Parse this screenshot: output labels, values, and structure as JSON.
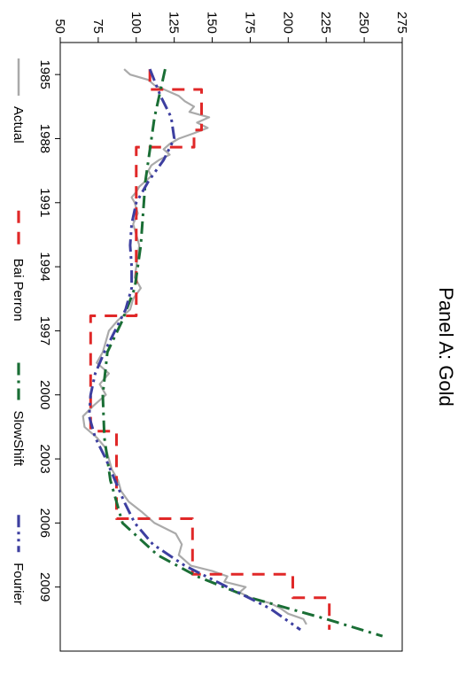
{
  "chart_data": {
    "type": "line",
    "title": "Panel A: Gold",
    "xlabel": "",
    "ylabel": "",
    "x_ticks": [
      "1985",
      "1988",
      "1991",
      "1994",
      "1997",
      "2000",
      "2003",
      "2006",
      "2009"
    ],
    "x_tick_values": [
      1985,
      1988,
      1991,
      1994,
      1997,
      2000,
      2003,
      2006,
      2009
    ],
    "xlim": [
      1983.5,
      2012.0
    ],
    "y_ticks": [
      "50",
      "75",
      "100",
      "125",
      "150",
      "175",
      "200",
      "225",
      "250",
      "275"
    ],
    "ylim": [
      50,
      275
    ],
    "legend_placement": "bottom",
    "series": [
      {
        "name": "Actual",
        "color": "#aaaaaa",
        "dash": "solid",
        "x": [
          1984.75,
          1985.0,
          1985.25,
          1985.5,
          1985.75,
          1986.0,
          1986.25,
          1986.5,
          1986.75,
          1987.0,
          1987.25,
          1987.5,
          1987.75,
          1988.0,
          1988.25,
          1988.5,
          1988.75,
          1989.0,
          1989.25,
          1989.5,
          1989.75,
          1990.0,
          1990.25,
          1990.5,
          1990.75,
          1991.0,
          1991.5,
          1992.0,
          1992.5,
          1993.0,
          1993.5,
          1994.0,
          1994.5,
          1995.0,
          1995.5,
          1996.0,
          1996.5,
          1997.0,
          1997.5,
          1998.0,
          1998.5,
          1999.0,
          1999.5,
          2000.0,
          2000.5,
          2001.0,
          2001.5,
          2002.0,
          2002.5,
          2003.0,
          2003.5,
          2004.0,
          2004.5,
          2005.0,
          2005.5,
          2006.0,
          2006.5,
          2007.0,
          2007.5,
          2008.0,
          2008.25,
          2008.5,
          2008.75,
          2009.0,
          2009.25,
          2009.5,
          2009.75,
          2010.0,
          2010.25,
          2010.5,
          2010.75
        ],
        "y": [
          92,
          96,
          108,
          112,
          120,
          128,
          132,
          138,
          135,
          148,
          140,
          147,
          138,
          128,
          122,
          118,
          122,
          115,
          110,
          108,
          110,
          106,
          102,
          100,
          97,
          99,
          101,
          98,
          100,
          102,
          101,
          100,
          99,
          103,
          98,
          96,
          88,
          82,
          80,
          78,
          74,
          82,
          76,
          80,
          72,
          65,
          66,
          74,
          80,
          82,
          84,
          88,
          90,
          95,
          104,
          112,
          126,
          130,
          128,
          136,
          150,
          160,
          158,
          172,
          168,
          175,
          188,
          195,
          200,
          210,
          212
        ]
      },
      {
        "name": "Bai Perron",
        "color": "#e02828",
        "dash": "long",
        "x": [
          1984.75,
          1985.7,
          1985.7,
          1987.6,
          1987.6,
          1988.4,
          1988.4,
          1996.3,
          1996.3,
          1999.8,
          1999.8,
          2001.7,
          2001.7,
          2005.8,
          2005.8,
          2008.4,
          2008.4,
          2009.5,
          2009.5,
          2011.0
        ],
        "y": [
          109,
          109,
          143,
          143,
          138,
          138,
          100,
          100,
          70,
          70,
          70,
          70,
          87,
          87,
          137,
          137,
          203,
          203,
          227,
          227
        ]
      },
      {
        "name": "SlowShift",
        "color": "#1a6e35",
        "dash": "dashdot",
        "x": [
          1984.75,
          1987,
          1990,
          1993,
          1995,
          1996.5,
          1998,
          2000,
          2002,
          2004,
          2006,
          2007.5,
          2008.5,
          2009.5,
          2010.5,
          2011.3
        ],
        "y": [
          119,
          112,
          106,
          103,
          99,
          91,
          81,
          78,
          79,
          83,
          91,
          114,
          140,
          175,
          225,
          262
        ]
      },
      {
        "name": "Fourier",
        "color": "#3d3fa0",
        "dash": "dashdotdot",
        "x": [
          1984.75,
          1986,
          1987,
          1988,
          1989,
          1990,
          1991,
          1992,
          1993,
          1994,
          1995,
          1996,
          1997,
          1998,
          1999,
          2000,
          2001,
          2002,
          2003,
          2004,
          2005,
          2006,
          2007,
          2008,
          2009,
          2010,
          2011
        ],
        "y": [
          109,
          116,
          123,
          125,
          118,
          108,
          100,
          97,
          96,
          97,
          97,
          93,
          86,
          79,
          73,
          70,
          69,
          73,
          80,
          86,
          92,
          99,
          111,
          132,
          160,
          188,
          208
        ]
      }
    ]
  },
  "legend": {
    "items": [
      {
        "label": "Actual",
        "color": "#aaaaaa",
        "dash": "solid"
      },
      {
        "label": "Bai Perron",
        "color": "#e02828",
        "dash": "long"
      },
      {
        "label": "SlowShift",
        "color": "#1a6e35",
        "dash": "dashdot"
      },
      {
        "label": "Fourier",
        "color": "#3d3fa0",
        "dash": "dashdotdot"
      }
    ]
  }
}
